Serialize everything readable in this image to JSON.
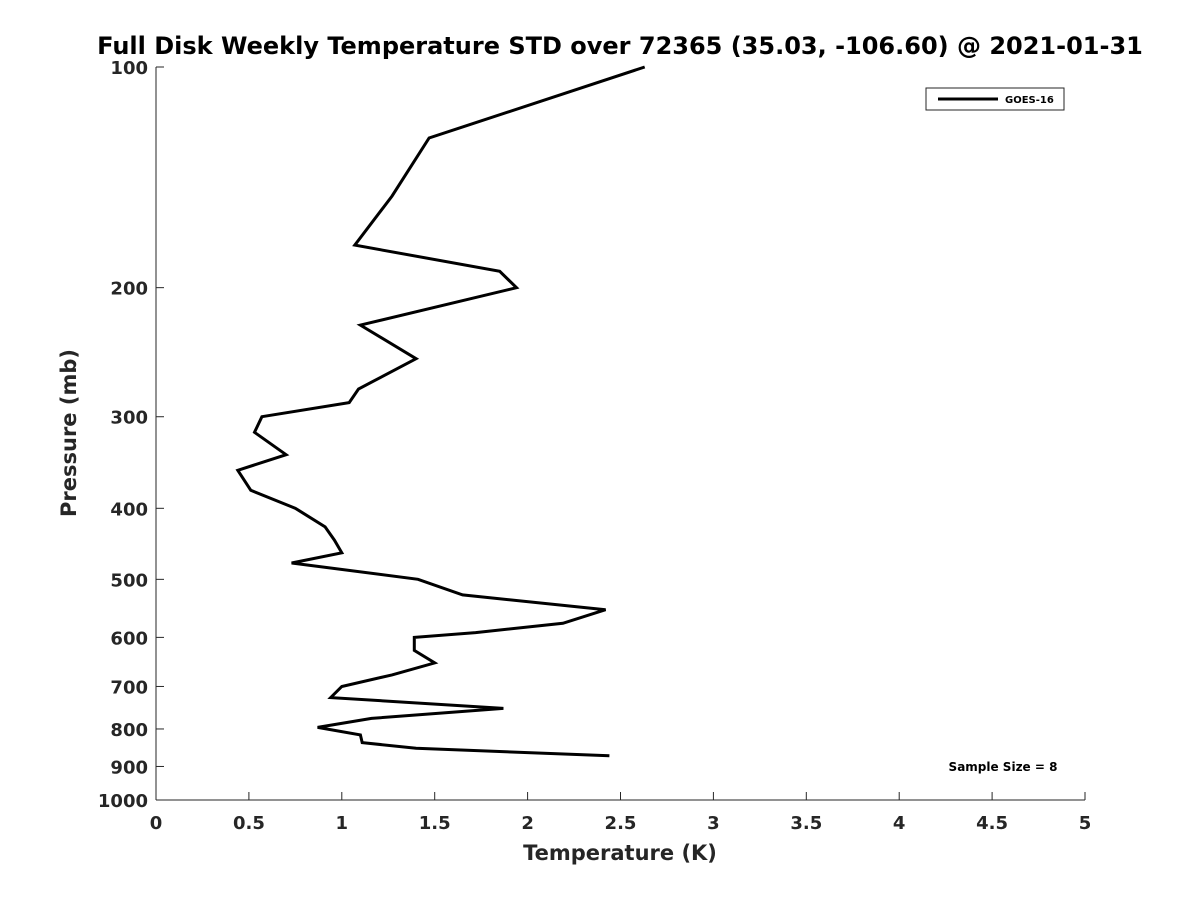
{
  "chart_data": {
    "type": "line",
    "title": "Full Disk Weekly Temperature STD over 72365 (35.03, -106.60) @ 2021-01-31",
    "xlabel": "Temperature (K)",
    "ylabel": "Pressure (mb)",
    "xlim": [
      0,
      5
    ],
    "ylim": [
      100,
      1000
    ],
    "y_scale": "log",
    "y_reversed": true,
    "x_ticks": [
      "0",
      "0.5",
      "1",
      "1.5",
      "2",
      "2.5",
      "3",
      "3.5",
      "4",
      "4.5",
      "5"
    ],
    "y_ticks": [
      "100",
      "200",
      "300",
      "400",
      "500",
      "600",
      "700",
      "800",
      "900",
      "1000"
    ],
    "grid": false,
    "legend_position": "top-right",
    "annotation": "Sample Size = 8",
    "series": [
      {
        "name": "GOES-16",
        "color": "#000000",
        "points": [
          [
            2.63,
            100
          ],
          [
            1.47,
            125
          ],
          [
            1.27,
            150
          ],
          [
            1.07,
            175
          ],
          [
            1.85,
            190
          ],
          [
            1.94,
            200
          ],
          [
            1.1,
            225
          ],
          [
            1.4,
            250
          ],
          [
            1.09,
            275
          ],
          [
            1.04,
            287
          ],
          [
            0.57,
            300
          ],
          [
            0.53,
            315
          ],
          [
            0.7,
            338
          ],
          [
            0.44,
            355
          ],
          [
            0.51,
            378
          ],
          [
            0.75,
            400
          ],
          [
            0.91,
            424
          ],
          [
            0.96,
            442
          ],
          [
            1.0,
            460
          ],
          [
            0.73,
            475
          ],
          [
            1.41,
            500
          ],
          [
            1.65,
            525
          ],
          [
            2.42,
            550
          ],
          [
            2.19,
            574
          ],
          [
            1.72,
            591
          ],
          [
            1.39,
            600
          ],
          [
            1.39,
            625
          ],
          [
            1.5,
            650
          ],
          [
            1.27,
            675
          ],
          [
            1.0,
            700
          ],
          [
            0.94,
            725
          ],
          [
            1.87,
            750
          ],
          [
            1.16,
            774
          ],
          [
            0.87,
            796
          ],
          [
            1.1,
            815
          ],
          [
            1.11,
            835
          ],
          [
            1.4,
            850
          ],
          [
            2.44,
            870
          ]
        ]
      }
    ]
  }
}
